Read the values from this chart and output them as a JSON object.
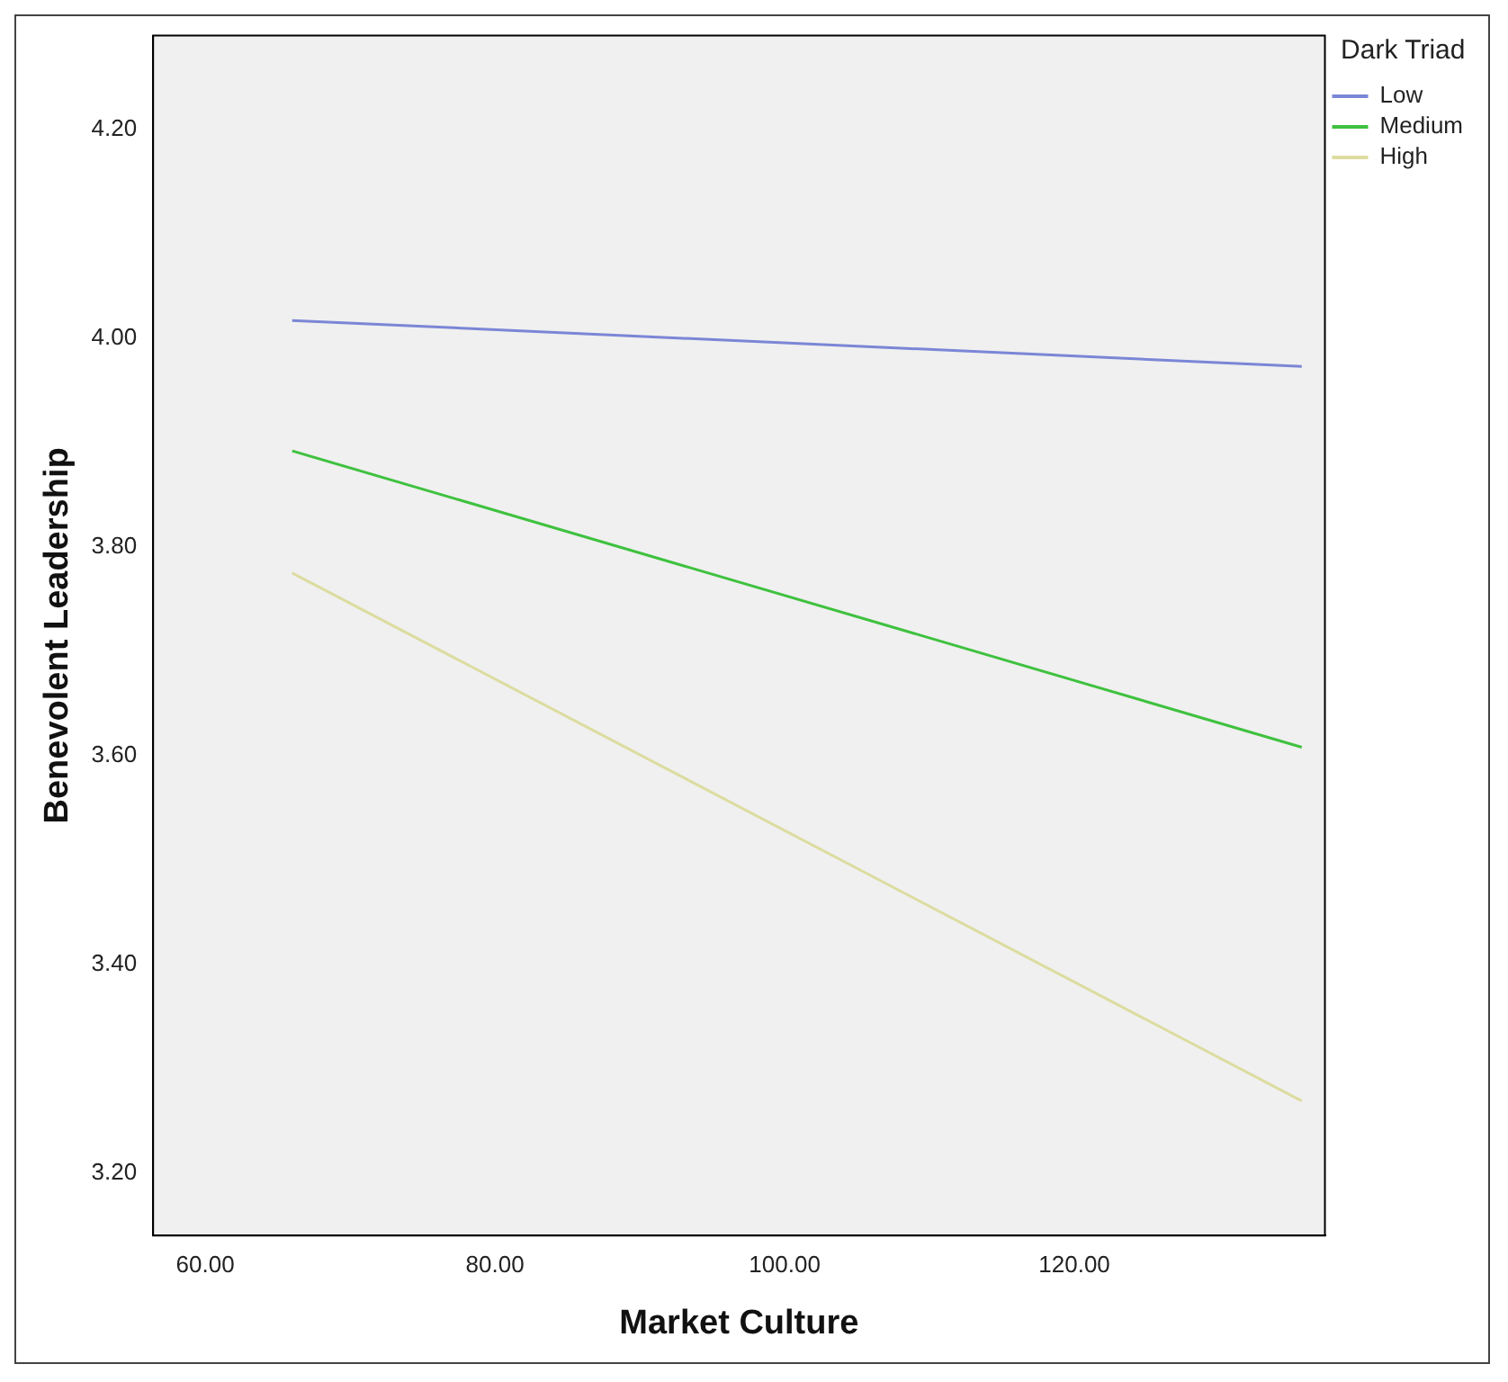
{
  "chart_data": {
    "type": "line",
    "xlabel": "Market Culture",
    "ylabel": "Benevolent Leadership",
    "legend_title": "Dark Triad",
    "x": [
      66.0,
      135.7
    ],
    "series": [
      {
        "name": "Low",
        "color": "#7b86d6",
        "values": [
          4.017,
          3.973
        ]
      },
      {
        "name": "Medium",
        "color": "#3fc13f",
        "values": [
          3.892,
          3.608
        ]
      },
      {
        "name": "High",
        "color": "#dcdca0",
        "values": [
          3.775,
          3.269
        ]
      }
    ],
    "xlim": [
      56.4,
      137.3
    ],
    "xticks": [
      {
        "value": 60,
        "label": "60.00"
      },
      {
        "value": 80,
        "label": "80.00"
      },
      {
        "value": 100,
        "label": "100.00"
      },
      {
        "value": 120,
        "label": "120.00"
      }
    ],
    "ylim": [
      3.14,
      4.29
    ],
    "yticks": [
      {
        "value": 3.2,
        "label": "3.20"
      },
      {
        "value": 3.4,
        "label": "3.40"
      },
      {
        "value": 3.6,
        "label": "3.60"
      },
      {
        "value": 3.8,
        "label": "3.80"
      },
      {
        "value": 4.0,
        "label": "4.00"
      },
      {
        "value": 4.2,
        "label": "4.20"
      }
    ],
    "grid": false,
    "legend": "top right",
    "marker": "none",
    "line_style": "solid"
  }
}
